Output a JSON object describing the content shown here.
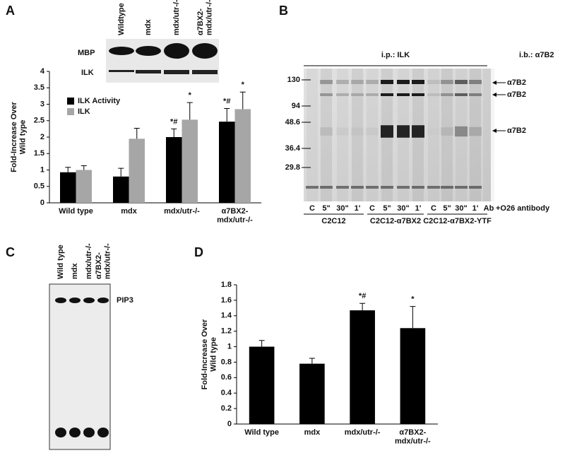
{
  "panels": [
    "A",
    "B",
    "C",
    "D"
  ],
  "blot_a": {
    "lanes": [
      "Wildtype",
      "mdx",
      "mdx/utr-/-",
      "α7BX2-\nmdx/utr-/-"
    ],
    "rows": [
      "MBP",
      "ILK"
    ]
  },
  "blot_b": {
    "ip": "i.p.: ILK",
    "ib": "i.b.: α7B2",
    "markers": [
      130,
      94,
      48.6,
      36.4,
      29.8
    ],
    "lanes": [
      "C",
      "5\"",
      "30\"",
      "1'",
      "C",
      "5\"",
      "30\"",
      "1'",
      "C",
      "5\"",
      "30\"",
      "1'",
      "Ab"
    ],
    "treatment": "+O26 antibody",
    "groups": [
      "C2C12",
      "C2C12-α7BX2",
      "C2C12-α7BX2-YTF"
    ],
    "bands": [
      "α7B2",
      "α7B2",
      "α7B2"
    ]
  },
  "blot_c": {
    "lanes": [
      "Wild type",
      "mdx",
      "mdx/utr-/-",
      "α7BX2-\nmdx/utr-/-"
    ],
    "spot": "PIP3"
  },
  "chart_data": [
    {
      "type": "bar",
      "ylabel": "Fold-Increase Over\nWild type",
      "categories": [
        "Wild type",
        "mdx",
        "mdx/utr-/-",
        "α7BX2-\nmdx/utr-/-"
      ],
      "series": [
        {
          "name": "ILK Activity",
          "color": "#000000",
          "values": [
            0.93,
            0.8,
            2.0,
            2.47
          ],
          "errors": [
            0.15,
            0.25,
            0.25,
            0.4
          ],
          "annotations": [
            null,
            null,
            "*#",
            "*#"
          ]
        },
        {
          "name": "ILK",
          "color": "#a6a6a6",
          "values": [
            1.0,
            1.95,
            2.53,
            2.85
          ],
          "errors": [
            0.13,
            0.32,
            0.52,
            0.52
          ],
          "annotations": [
            null,
            null,
            "*",
            "*"
          ]
        }
      ],
      "ylim": [
        0,
        4
      ],
      "yticks": [
        0,
        0.5,
        1,
        1.5,
        2,
        2.5,
        3,
        3.5,
        4
      ]
    },
    {
      "type": "bar",
      "ylabel": "Fold-Increase Over\nWild type",
      "categories": [
        "Wild type",
        "mdx",
        "mdx/utr-/-",
        "α7BX2-\nmdx/utr-/-"
      ],
      "series": [
        {
          "color": "#000000",
          "values": [
            1.0,
            0.78,
            1.47,
            1.24
          ],
          "errors": [
            0.08,
            0.07,
            0.09,
            0.28
          ],
          "annotations": [
            null,
            null,
            "*#",
            "*"
          ]
        }
      ],
      "ylim": [
        0,
        1.8
      ],
      "yticks": [
        0,
        0.2,
        0.4,
        0.6,
        0.8,
        1,
        1.2,
        1.4,
        1.6,
        1.8
      ]
    }
  ]
}
